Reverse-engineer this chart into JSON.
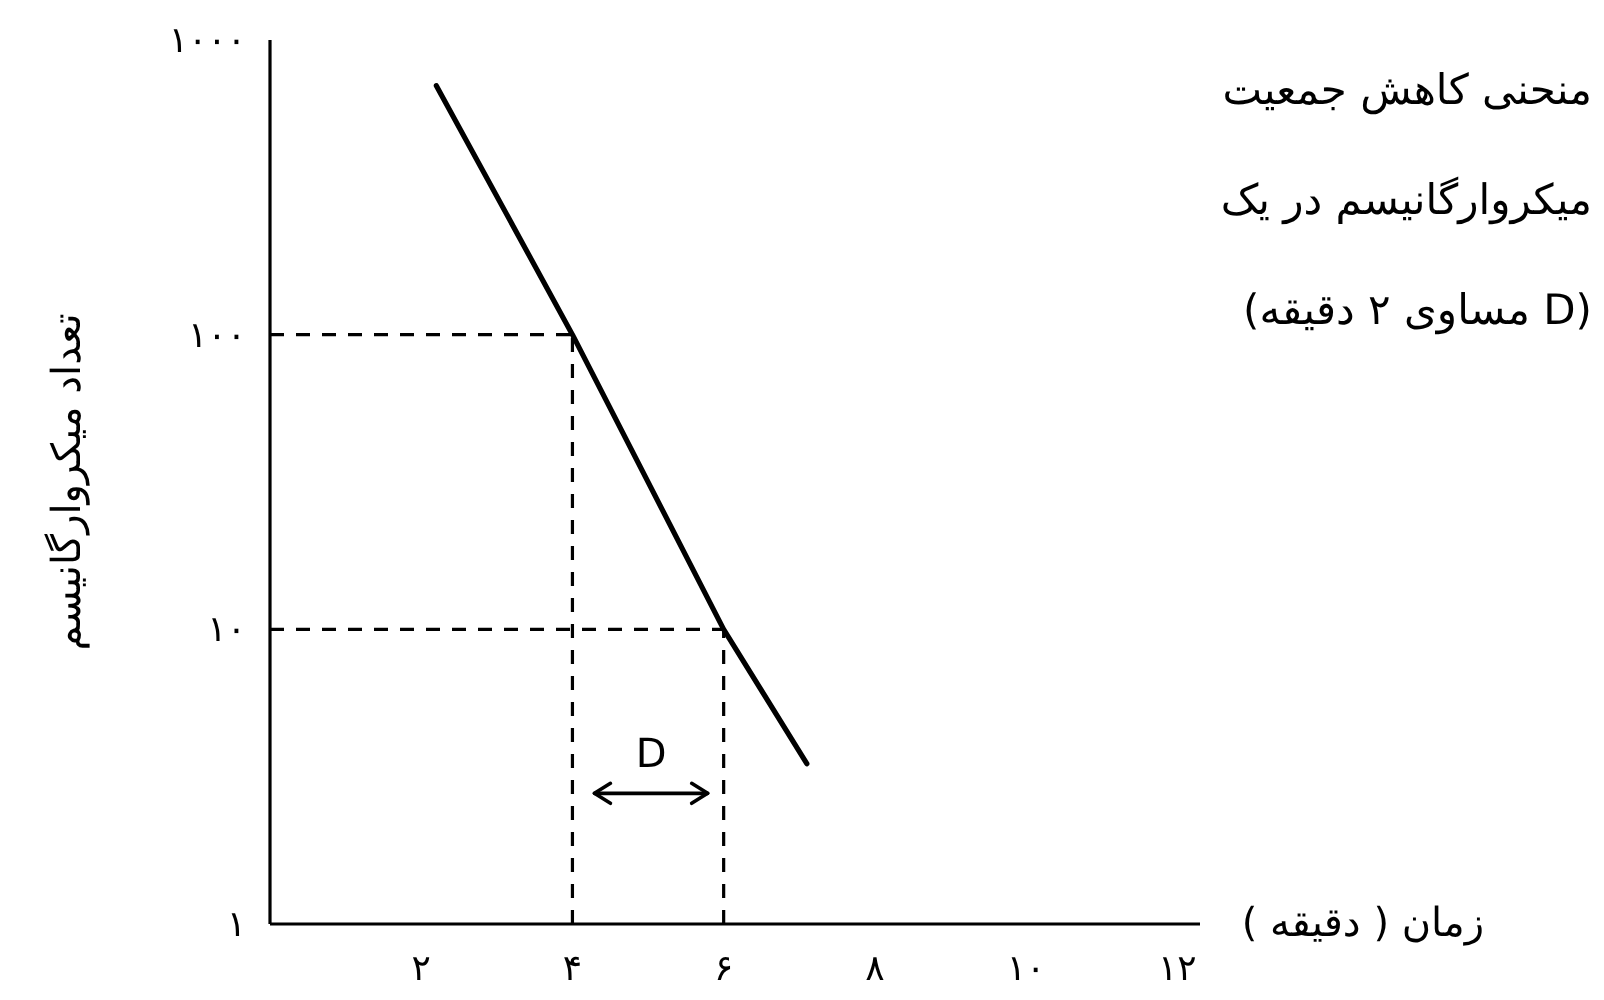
{
  "chart_data": {
    "type": "line",
    "title": "منحنی کاهش جمعیت\nمیکروارگانیسم در یک",
    "subtitle": "(D مساوی ۲ دقیقه)",
    "xlabel": "زمان ( دقیقه )",
    "ylabel": "تعداد میکروارگانیسم",
    "x": [
      2.2,
      4,
      6,
      7.1
    ],
    "series": [
      {
        "color": "#000000",
        "values": [
          700,
          100,
          10,
          3.5
        ]
      }
    ],
    "xlim": [
      0,
      12.3
    ],
    "ylim": [
      1,
      1000
    ],
    "xticks": [
      {
        "value": 2,
        "label": "۲"
      },
      {
        "value": 4,
        "label": "۴"
      },
      {
        "value": 6,
        "label": "۶"
      },
      {
        "value": 8,
        "label": "۸"
      },
      {
        "value": 10,
        "label": "۱۰"
      },
      {
        "value": 12,
        "label": "۱۲"
      }
    ],
    "yticks": [
      {
        "value": 1,
        "label": "۱"
      },
      {
        "value": 10,
        "label": "۱۰"
      },
      {
        "value": 100,
        "label": "۱۰۰"
      },
      {
        "value": 1000,
        "label": "۱۰۰۰"
      }
    ],
    "log": "y",
    "ref_lines": [
      {
        "axis": "y",
        "value": 100,
        "color": "#000000",
        "line_style": "dashed"
      },
      {
        "axis": "y",
        "value": 10,
        "color": "#000000",
        "line_style": "dashed"
      },
      {
        "axis": "x",
        "value": 4,
        "color": "#000000",
        "line_style": "dashed"
      },
      {
        "axis": "x",
        "value": 6,
        "color": "#000000",
        "line_style": "dashed"
      }
    ],
    "annotations": [
      "D"
    ]
  }
}
